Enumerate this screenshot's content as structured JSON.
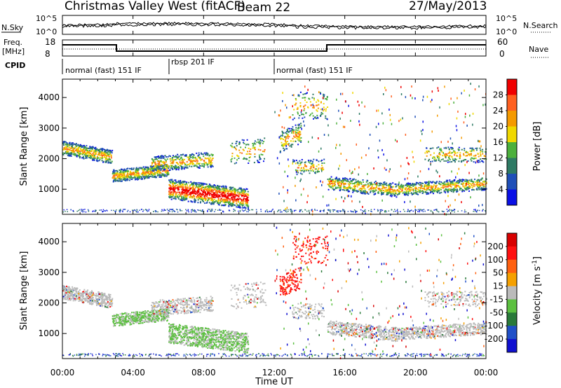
{
  "header": {
    "station": "Christmas Valley West (fitACF)",
    "beam": "Beam 22",
    "date": "27/May/2013"
  },
  "top_panels": {
    "nsky_label": "N.Sky",
    "nsky_ticks": [
      "10^5",
      "10^0"
    ],
    "nsearch_label": "N.Search",
    "nsearch_ticks": [
      "10^5",
      "10^0"
    ],
    "freq_label": "Freq.",
    "freq_unit": "[MHz]",
    "freq_ticks": [
      "18",
      "8"
    ],
    "nave_label": "Nave",
    "nave_ticks": [
      "60",
      "0"
    ],
    "cpid_label": "CPID"
  },
  "cpid_segments": [
    {
      "label": "normal (fast) 151 IF",
      "start": 0,
      "end": 6
    },
    {
      "label": "rbsp 201 IF",
      "start": 6,
      "end": 12
    },
    {
      "label": "normal (fast) 151 IF",
      "start": 12,
      "end": 24
    }
  ],
  "chart_data": [
    {
      "type": "heatmap",
      "name": "power",
      "xlabel": "Time UT",
      "ylabel": "Slant Range [km]",
      "xlim": [
        0,
        24
      ],
      "ylim": [
        180,
        4600
      ],
      "y_ticks": [
        "1000",
        "2000",
        "3000",
        "4000"
      ],
      "colorbar_label": "Power [dB]",
      "colorbar_ticks": [
        "4",
        "8",
        "12",
        "16",
        "20",
        "24",
        "28"
      ],
      "colors": [
        "#0a10e6",
        "#1f4fb8",
        "#2e7a64",
        "#4cb03c",
        "#f0d800",
        "#f59a00",
        "#ff6020",
        "#f00000"
      ]
    },
    {
      "type": "heatmap",
      "name": "velocity",
      "xlabel": "Time UT",
      "ylabel": "Slant Range [km]",
      "xlim": [
        0,
        24
      ],
      "ylim": [
        180,
        4600
      ],
      "y_ticks": [
        "1000",
        "2000",
        "3000",
        "4000"
      ],
      "colorbar_label": "Velocity [m s^-1]",
      "colorbar_ticks": [
        "200",
        "100",
        "50",
        "15",
        "-15",
        "-50",
        "-100",
        "-200"
      ],
      "colors": [
        "#1010d0",
        "#2050c8",
        "#2a7a3a",
        "#5cc040",
        "#bbbbbb",
        "#f5a000",
        "#ff6010",
        "#ff1010",
        "#d80000"
      ]
    }
  ],
  "x_ticks": [
    "00:00",
    "04:00",
    "08:00",
    "12:00",
    "16:00",
    "20:00",
    "00:00"
  ],
  "xlabel": "Time UT"
}
